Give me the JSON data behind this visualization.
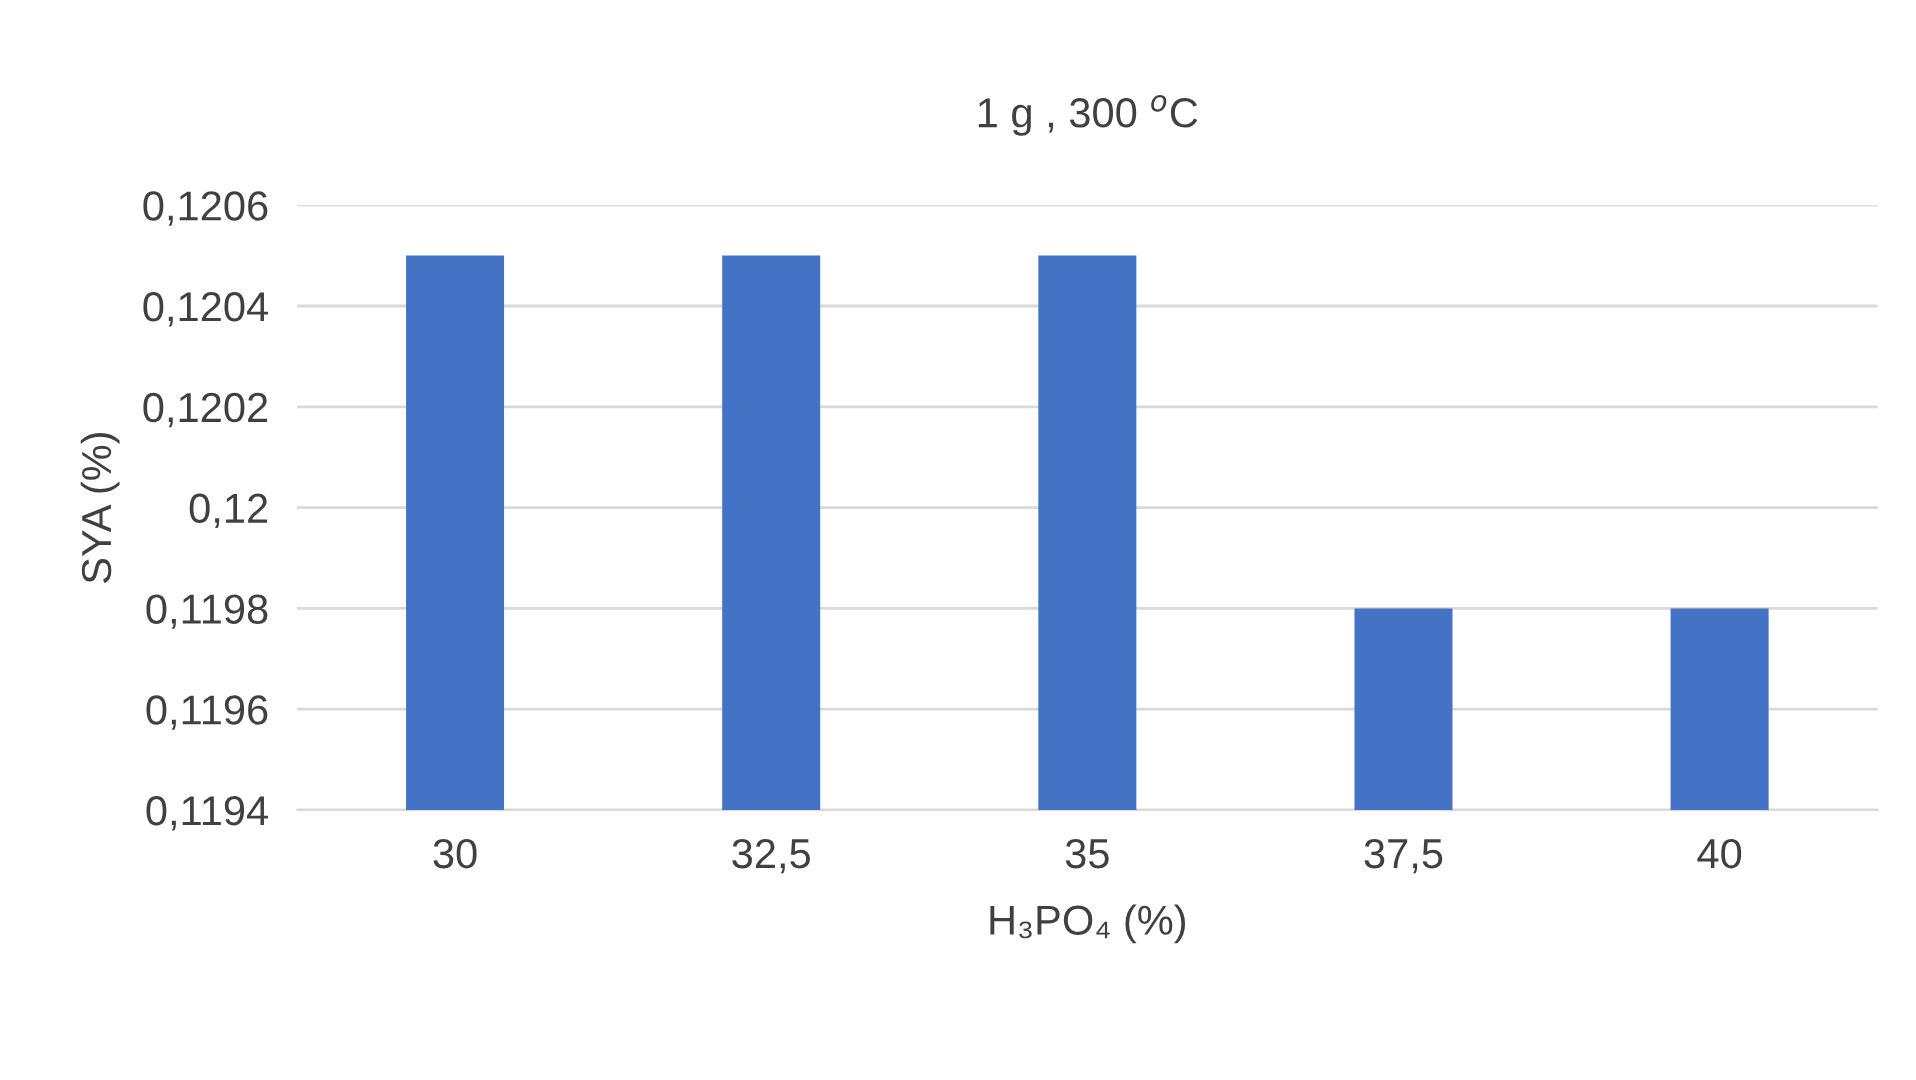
{
  "chart_data": {
    "type": "bar",
    "title": "1 g , 300 $^{o}$C",
    "xlabel": "H₃PO₄ (%)",
    "ylabel": "SYA (%)",
    "categories": [
      "30",
      "32,5",
      "35",
      "37,5",
      "40"
    ],
    "series": [
      {
        "color": "#4472c4",
        "values": [
          0.1205,
          0.1205,
          0.1205,
          0.1198,
          0.1198
        ]
      }
    ],
    "ylim": [
      0.1194,
      0.1206
    ],
    "yticks": [
      {
        "value": 0.1194,
        "label": "0,1194"
      },
      {
        "value": 0.1196,
        "label": "0,1196"
      },
      {
        "value": 0.1198,
        "label": "0,1198"
      },
      {
        "value": 0.12,
        "label": "0,12"
      },
      {
        "value": 0.1202,
        "label": "0,1202"
      },
      {
        "value": 0.1204,
        "label": "0,1204"
      },
      {
        "value": 0.1206,
        "label": "0,1206"
      }
    ],
    "grid": "y"
  }
}
